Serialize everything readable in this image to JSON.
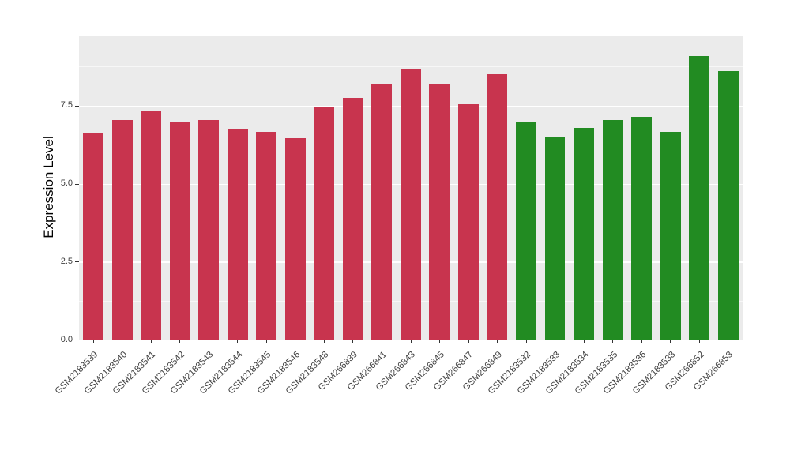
{
  "chart_data": {
    "type": "bar",
    "title": "",
    "xlabel": "",
    "ylabel": "Expression Level",
    "categories": [
      "GSM2183539",
      "GSM2183540",
      "GSM2183541",
      "GSM2183542",
      "GSM2183543",
      "GSM2183544",
      "GSM2183545",
      "GSM2183546",
      "GSM2183548",
      "GSM266839",
      "GSM266841",
      "GSM266843",
      "GSM266845",
      "GSM266847",
      "GSM266849",
      "GSM2183532",
      "GSM2183533",
      "GSM2183534",
      "GSM2183535",
      "GSM2183536",
      "GSM2183538",
      "GSM266852",
      "GSM266853"
    ],
    "values": [
      6.6,
      7.05,
      7.35,
      7.0,
      7.05,
      6.75,
      6.65,
      6.45,
      7.45,
      7.75,
      8.2,
      8.65,
      8.2,
      7.55,
      8.5,
      7.0,
      6.5,
      6.8,
      7.05,
      7.15,
      6.65,
      9.1,
      8.6
    ],
    "groups": [
      "g1",
      "g1",
      "g1",
      "g1",
      "g1",
      "g1",
      "g1",
      "g1",
      "g1",
      "g1",
      "g1",
      "g1",
      "g1",
      "g1",
      "g1",
      "g2",
      "g2",
      "g2",
      "g2",
      "g2",
      "g2",
      "g2",
      "g2"
    ],
    "group_colors": {
      "g1": "#C8344E",
      "g2": "#228B22"
    },
    "y_axis": {
      "tick_labels": [
        "0.0",
        "2.5",
        "5.0",
        "7.5"
      ],
      "major_ticks": [
        0,
        2.5,
        5,
        7.5
      ],
      "minor_ticks": [
        1.25,
        3.75,
        6.25,
        8.75
      ],
      "lim": [
        0,
        9.75
      ],
      "max_display": 9.75
    },
    "panel_bg": "#EBEBEB",
    "grid_color": "#FFFFFF",
    "bar_width_ratio": 0.71,
    "legend": "none",
    "grid": "on"
  }
}
